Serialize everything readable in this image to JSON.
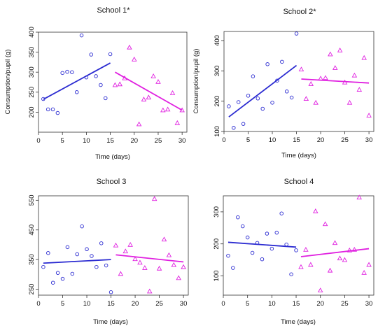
{
  "colors": {
    "before": "#2b2bd1",
    "after": "#e020e0",
    "frame": "#333333"
  },
  "chart_data": [
    {
      "type": "scatter",
      "title": "School 1*",
      "xlabel": "Time (days)",
      "ylabel": "Consumption/pupil (g)",
      "xlim": [
        0,
        31
      ],
      "ylim": [
        150,
        400
      ],
      "xticks": [
        "0",
        "5",
        "10",
        "15",
        "20",
        "25",
        "30"
      ],
      "yticks": [
        "200",
        "250",
        "300",
        "350",
        "400"
      ],
      "series": [
        {
          "role": "before",
          "marker": "circle",
          "x": [
            1,
            2,
            3,
            4,
            5,
            6,
            7,
            8,
            9,
            10,
            11,
            12,
            13,
            14,
            15
          ],
          "y": [
            233,
            207,
            207,
            198,
            298,
            301,
            300,
            250,
            392,
            287,
            344,
            290,
            268,
            235,
            345
          ]
        },
        {
          "role": "after",
          "marker": "triangle",
          "x": [
            16,
            17,
            18,
            19,
            20,
            21,
            22,
            23,
            24,
            25,
            26,
            27,
            28,
            29,
            30
          ],
          "y": [
            268,
            270,
            285,
            362,
            332,
            170,
            232,
            237,
            290,
            276,
            205,
            207,
            248,
            173,
            205
          ]
        }
      ],
      "trend_before": {
        "x": [
          1,
          15
        ],
        "y": [
          232,
          323
        ]
      },
      "trend_after": {
        "x": [
          16,
          30
        ],
        "y": [
          300,
          205
        ]
      }
    },
    {
      "type": "scatter",
      "title": "School 2*",
      "xlabel": "Time (days)",
      "ylabel": "Consumption/pupil (g)",
      "xlim": [
        0,
        31
      ],
      "ylim": [
        100,
        430
      ],
      "xticks": [
        "0",
        "5",
        "10",
        "15",
        "20",
        "25",
        "30"
      ],
      "yticks": [
        "100",
        "200",
        "300",
        "400"
      ],
      "series": [
        {
          "role": "before",
          "marker": "circle",
          "x": [
            1,
            2,
            3,
            4,
            5,
            6,
            7,
            8,
            9,
            10,
            11,
            12,
            13,
            14,
            15
          ],
          "y": [
            183,
            112,
            197,
            125,
            218,
            282,
            209,
            175,
            322,
            195,
            268,
            330,
            232,
            212,
            423
          ]
        },
        {
          "role": "after",
          "marker": "triangle",
          "x": [
            16,
            17,
            18,
            19,
            20,
            21,
            22,
            23,
            24,
            25,
            26,
            27,
            28,
            29,
            30
          ],
          "y": [
            305,
            208,
            257,
            195,
            275,
            277,
            355,
            310,
            368,
            262,
            195,
            285,
            238,
            343,
            153
          ]
        }
      ],
      "trend_before": {
        "x": [
          1,
          15
        ],
        "y": [
          148,
          318
        ]
      },
      "trend_after": {
        "x": [
          16,
          30
        ],
        "y": [
          273,
          260
        ]
      }
    },
    {
      "type": "scatter",
      "title": "School 3",
      "xlabel": "Time (days)",
      "ylabel": "",
      "xlim": [
        0,
        31
      ],
      "ylim": [
        230,
        565
      ],
      "xticks": [
        "0",
        "5",
        "10",
        "15",
        "20",
        "25",
        "30"
      ],
      "yticks": [
        "250",
        "350",
        "450",
        "550"
      ],
      "series": [
        {
          "role": "before",
          "marker": "circle",
          "x": [
            1,
            2,
            3,
            4,
            5,
            6,
            7,
            8,
            9,
            10,
            11,
            12,
            13,
            14,
            15
          ],
          "y": [
            325,
            372,
            272,
            305,
            285,
            392,
            302,
            368,
            462,
            385,
            362,
            325,
            405,
            330,
            240
          ]
        },
        {
          "role": "after",
          "marker": "triangle",
          "x": [
            16,
            17,
            18,
            19,
            20,
            21,
            22,
            23,
            24,
            25,
            26,
            27,
            28,
            29,
            30
          ],
          "y": [
            398,
            302,
            378,
            400,
            352,
            340,
            322,
            243,
            555,
            320,
            418,
            365,
            332,
            288,
            325
          ]
        }
      ],
      "trend_before": {
        "x": [
          1,
          15
        ],
        "y": [
          338,
          350
        ]
      },
      "trend_after": {
        "x": [
          16,
          30
        ],
        "y": [
          366,
          342
        ]
      }
    },
    {
      "type": "scatter",
      "title": "School 4",
      "xlabel": "Time (days)",
      "ylabel": "",
      "xlim": [
        0,
        31
      ],
      "ylim": [
        40,
        350
      ],
      "xticks": [
        "0",
        "5",
        "10",
        "15",
        "20",
        "25",
        "30"
      ],
      "yticks": [
        "100",
        "200",
        "300"
      ],
      "series": [
        {
          "role": "before",
          "marker": "circle",
          "x": [
            1,
            2,
            3,
            4,
            5,
            6,
            7,
            8,
            9,
            10,
            11,
            12,
            13,
            14,
            15
          ],
          "y": [
            163,
            125,
            283,
            255,
            220,
            172,
            203,
            152,
            232,
            185,
            235,
            295,
            198,
            105,
            180
          ]
        },
        {
          "role": "after",
          "marker": "triangle",
          "x": [
            16,
            17,
            18,
            19,
            20,
            21,
            22,
            23,
            24,
            25,
            26,
            27,
            28,
            29,
            30
          ],
          "y": [
            128,
            182,
            135,
            302,
            55,
            262,
            117,
            203,
            155,
            150,
            180,
            182,
            345,
            110,
            135
          ]
        }
      ],
      "trend_before": {
        "x": [
          1,
          15
        ],
        "y": [
          205,
          190
        ]
      },
      "trend_after": {
        "x": [
          16,
          30
        ],
        "y": [
          160,
          185
        ]
      }
    }
  ]
}
